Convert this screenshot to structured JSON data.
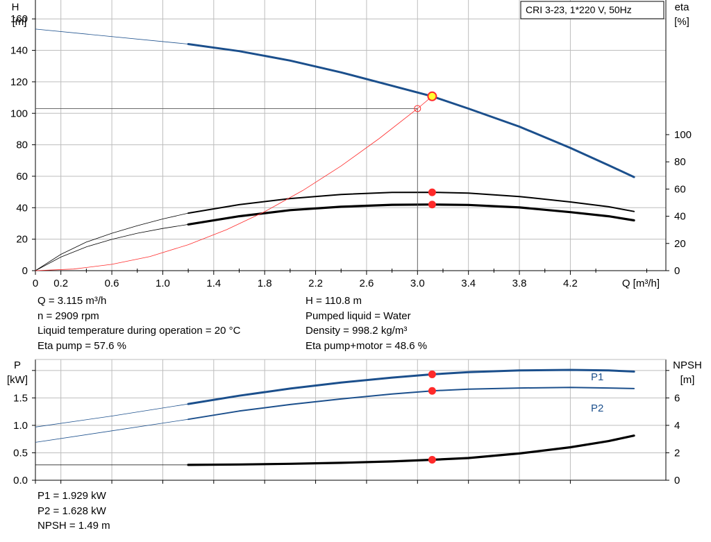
{
  "legend_box": {
    "text": "CRI 3-23, 1*220 V, 50Hz"
  },
  "colors": {
    "blue": "#1b4f8c",
    "red": "#ff2a2a",
    "black": "#000000",
    "grid": "#bdbdbd",
    "duty_point": "#ffff33"
  },
  "info_left": [
    "Q = 3.115 m³/h",
    "n = 2909 rpm",
    "Liquid temperature during operation = 20 °C",
    "Eta pump = 57.6 %"
  ],
  "info_right": [
    "H = 110.8 m",
    "Pumped liquid = Water",
    "Density = 998.2 kg/m³",
    "Eta pump+motor = 48.6 %"
  ],
  "info_bottom": [
    "P1 = 1.929 kW",
    "P2 = 1.628 kW",
    "NPSH = 1.49 m"
  ],
  "chart_data": [
    {
      "type": "line",
      "x_axis": {
        "label": "Q [m³/h]",
        "range": [
          0,
          4.95
        ],
        "ticks": [
          0,
          0.2,
          0.6,
          1.0,
          1.4,
          1.8,
          2.2,
          2.6,
          3.0,
          3.4,
          3.8,
          4.2
        ],
        "tick_labels": [
          "0",
          "0.2",
          "0.6",
          "1.0",
          "1.4",
          "1.8",
          "2.2",
          "2.6",
          "3.0",
          "3.4",
          "3.8",
          "4.2"
        ]
      },
      "y_left": {
        "label_line1": "H",
        "label_line2": "[m]",
        "range": [
          0,
          172
        ],
        "ticks": [
          0,
          20,
          40,
          60,
          80,
          100,
          120,
          140,
          160
        ]
      },
      "y_right": {
        "label_line1": "eta",
        "label_line2": "[%]",
        "range": [
          0,
          100
        ],
        "ticks": [
          0,
          20,
          40,
          60,
          80,
          100
        ]
      },
      "grid": true,
      "series": [
        {
          "name": "H",
          "axis": "left",
          "role": "head",
          "thin": {
            "x": [
              0,
              1.2
            ],
            "y": [
              153.5,
              144
            ]
          },
          "thick": {
            "x": [
              1.2,
              1.6,
              2.0,
              2.4,
              2.8,
              3.115,
              3.4,
              3.8,
              4.2,
              4.5,
              4.7
            ],
            "y": [
              144,
              139.5,
              133.5,
              126,
              117.5,
              110.8,
              103,
              91.5,
              78,
              67,
              59.5
            ]
          }
        },
        {
          "name": "Eta pump",
          "axis": "right",
          "role": "eta-pump",
          "thin": {
            "x": [
              0,
              0.2,
              0.4,
              0.6,
              0.8,
              1.0,
              1.2
            ],
            "y": [
              0,
              12,
              21,
              27.5,
              33,
              38,
              42.3
            ]
          },
          "thick": {
            "x": [
              1.2,
              1.6,
              2.0,
              2.4,
              2.8,
              3.115,
              3.4,
              3.8,
              4.2,
              4.5,
              4.7
            ],
            "y": [
              42.3,
              48.5,
              53,
              56,
              57.5,
              57.6,
              57,
              54.5,
              50.5,
              47,
              43.5
            ]
          }
        },
        {
          "name": "Eta pump+motor",
          "axis": "right",
          "role": "eta-total",
          "thin": {
            "x": [
              0,
              0.2,
              0.4,
              0.6,
              0.8,
              1.0,
              1.2
            ],
            "y": [
              0,
              10,
              17.5,
              23,
              27.5,
              31,
              34
            ]
          },
          "thick": {
            "x": [
              1.2,
              1.6,
              2.0,
              2.4,
              2.8,
              3.115,
              3.4,
              3.8,
              4.2,
              4.5,
              4.7
            ],
            "y": [
              34,
              40,
              44.5,
              47,
              48.4,
              48.6,
              48.3,
              46.5,
              43,
              40,
              37
            ]
          }
        },
        {
          "name": "System curve",
          "axis": "left",
          "role": "system",
          "thin": {
            "x": [
              0,
              0.3,
              0.6,
              0.9,
              1.2,
              1.5,
              1.8,
              2.1,
              2.4,
              2.7,
              3.0,
              3.115
            ],
            "y": [
              0,
              1,
              4,
              9,
              16.5,
              26,
              37.5,
              51,
              66.5,
              84,
              103,
              110.8
            ]
          }
        }
      ],
      "operating_point": {
        "q": 3.115,
        "h": 110.8,
        "eta_pump": 57.6,
        "eta_total": 48.6
      },
      "reference_point": {
        "q": 3.0,
        "h": 103
      }
    },
    {
      "type": "line",
      "x_axis": {
        "range": [
          0,
          4.95
        ],
        "ticks": [
          0,
          0.2,
          0.6,
          1.0,
          1.4,
          1.8,
          2.2,
          2.6,
          3.0,
          3.4,
          3.8,
          4.2
        ]
      },
      "y_left": {
        "label_line1": "P",
        "label_line2": "[kW]",
        "range": [
          0,
          2.2
        ],
        "ticks": [
          0,
          0.5,
          1.0,
          1.5
        ],
        "tick_labels": [
          "0.0",
          "0.5",
          "1.0",
          "1.5"
        ],
        "extra_tick": 2.0
      },
      "y_right": {
        "label_line1": "NPSH",
        "label_line2": "[m]",
        "range": [
          0,
          8.8
        ],
        "ticks": [
          0,
          2,
          4,
          6
        ],
        "tick_labels": [
          "0",
          "2",
          "4",
          "6"
        ],
        "extra_tick": 8
      },
      "grid": true,
      "series": [
        {
          "name": "P1",
          "axis": "left",
          "role": "p1",
          "thin": {
            "x": [
              0,
              0.6,
              1.2
            ],
            "y": [
              0.97,
              1.17,
              1.39
            ]
          },
          "thick": {
            "x": [
              1.2,
              1.6,
              2.0,
              2.4,
              2.8,
              3.115,
              3.4,
              3.8,
              4.2,
              4.5,
              4.7
            ],
            "y": [
              1.39,
              1.54,
              1.67,
              1.78,
              1.87,
              1.929,
              1.97,
              2.0,
              2.01,
              2.0,
              1.98
            ]
          }
        },
        {
          "name": "P2",
          "axis": "left",
          "role": "p2",
          "thin": {
            "x": [
              0,
              0.6,
              1.2
            ],
            "y": [
              0.69,
              0.9,
              1.11
            ]
          },
          "thick": {
            "x": [
              1.2,
              1.6,
              2.0,
              2.4,
              2.8,
              3.115,
              3.4,
              3.8,
              4.2,
              4.5,
              4.7
            ],
            "y": [
              1.11,
              1.26,
              1.38,
              1.48,
              1.57,
              1.628,
              1.66,
              1.68,
              1.69,
              1.68,
              1.67
            ]
          }
        },
        {
          "name": "NPSH",
          "axis": "right",
          "role": "npsh",
          "thin": {
            "x": [
              0,
              1.2
            ],
            "y": [
              1.12,
              1.12
            ]
          },
          "thick": {
            "x": [
              1.2,
              1.6,
              2.0,
              2.4,
              2.8,
              3.115,
              3.4,
              3.8,
              4.2,
              4.5,
              4.7
            ],
            "y": [
              1.12,
              1.15,
              1.2,
              1.27,
              1.37,
              1.49,
              1.62,
              1.95,
              2.4,
              2.85,
              3.25
            ]
          }
        }
      ],
      "operating_point": {
        "q": 3.115,
        "p1": 1.929,
        "p2": 1.628,
        "npsh": 1.49
      },
      "series_labels": [
        "P1",
        "P2"
      ]
    }
  ]
}
